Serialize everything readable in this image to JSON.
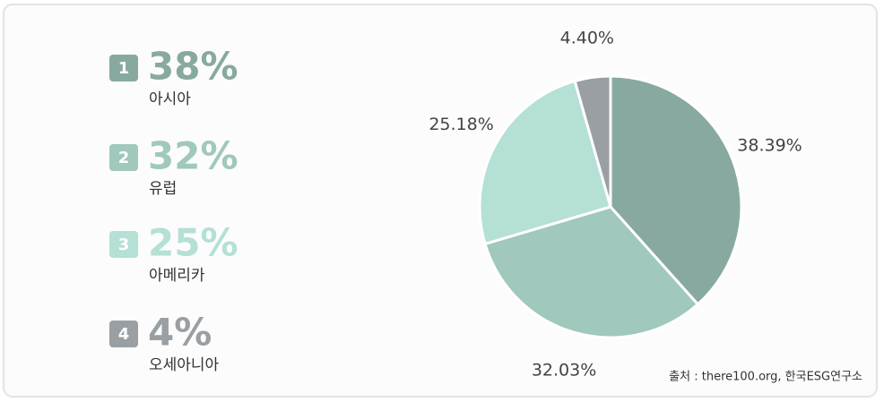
{
  "chart_data": {
    "type": "pie",
    "categories": [
      "아시아",
      "유럽",
      "아메리카",
      "오세아니아"
    ],
    "values": [
      38.39,
      32.03,
      25.18,
      4.4
    ],
    "value_labels": [
      "38.39%",
      "32.03%",
      "25.18%",
      "4.40%"
    ],
    "legend_ranks": [
      1,
      2,
      3,
      4
    ],
    "legend_value_labels": [
      "38%",
      "32%",
      "25%",
      "4%"
    ],
    "colors": [
      "#88a9a0",
      "#a0c8bd",
      "#b4e0d6",
      "#999fa3"
    ],
    "source": "출처 : there100.org, 한국ESG연구소"
  }
}
